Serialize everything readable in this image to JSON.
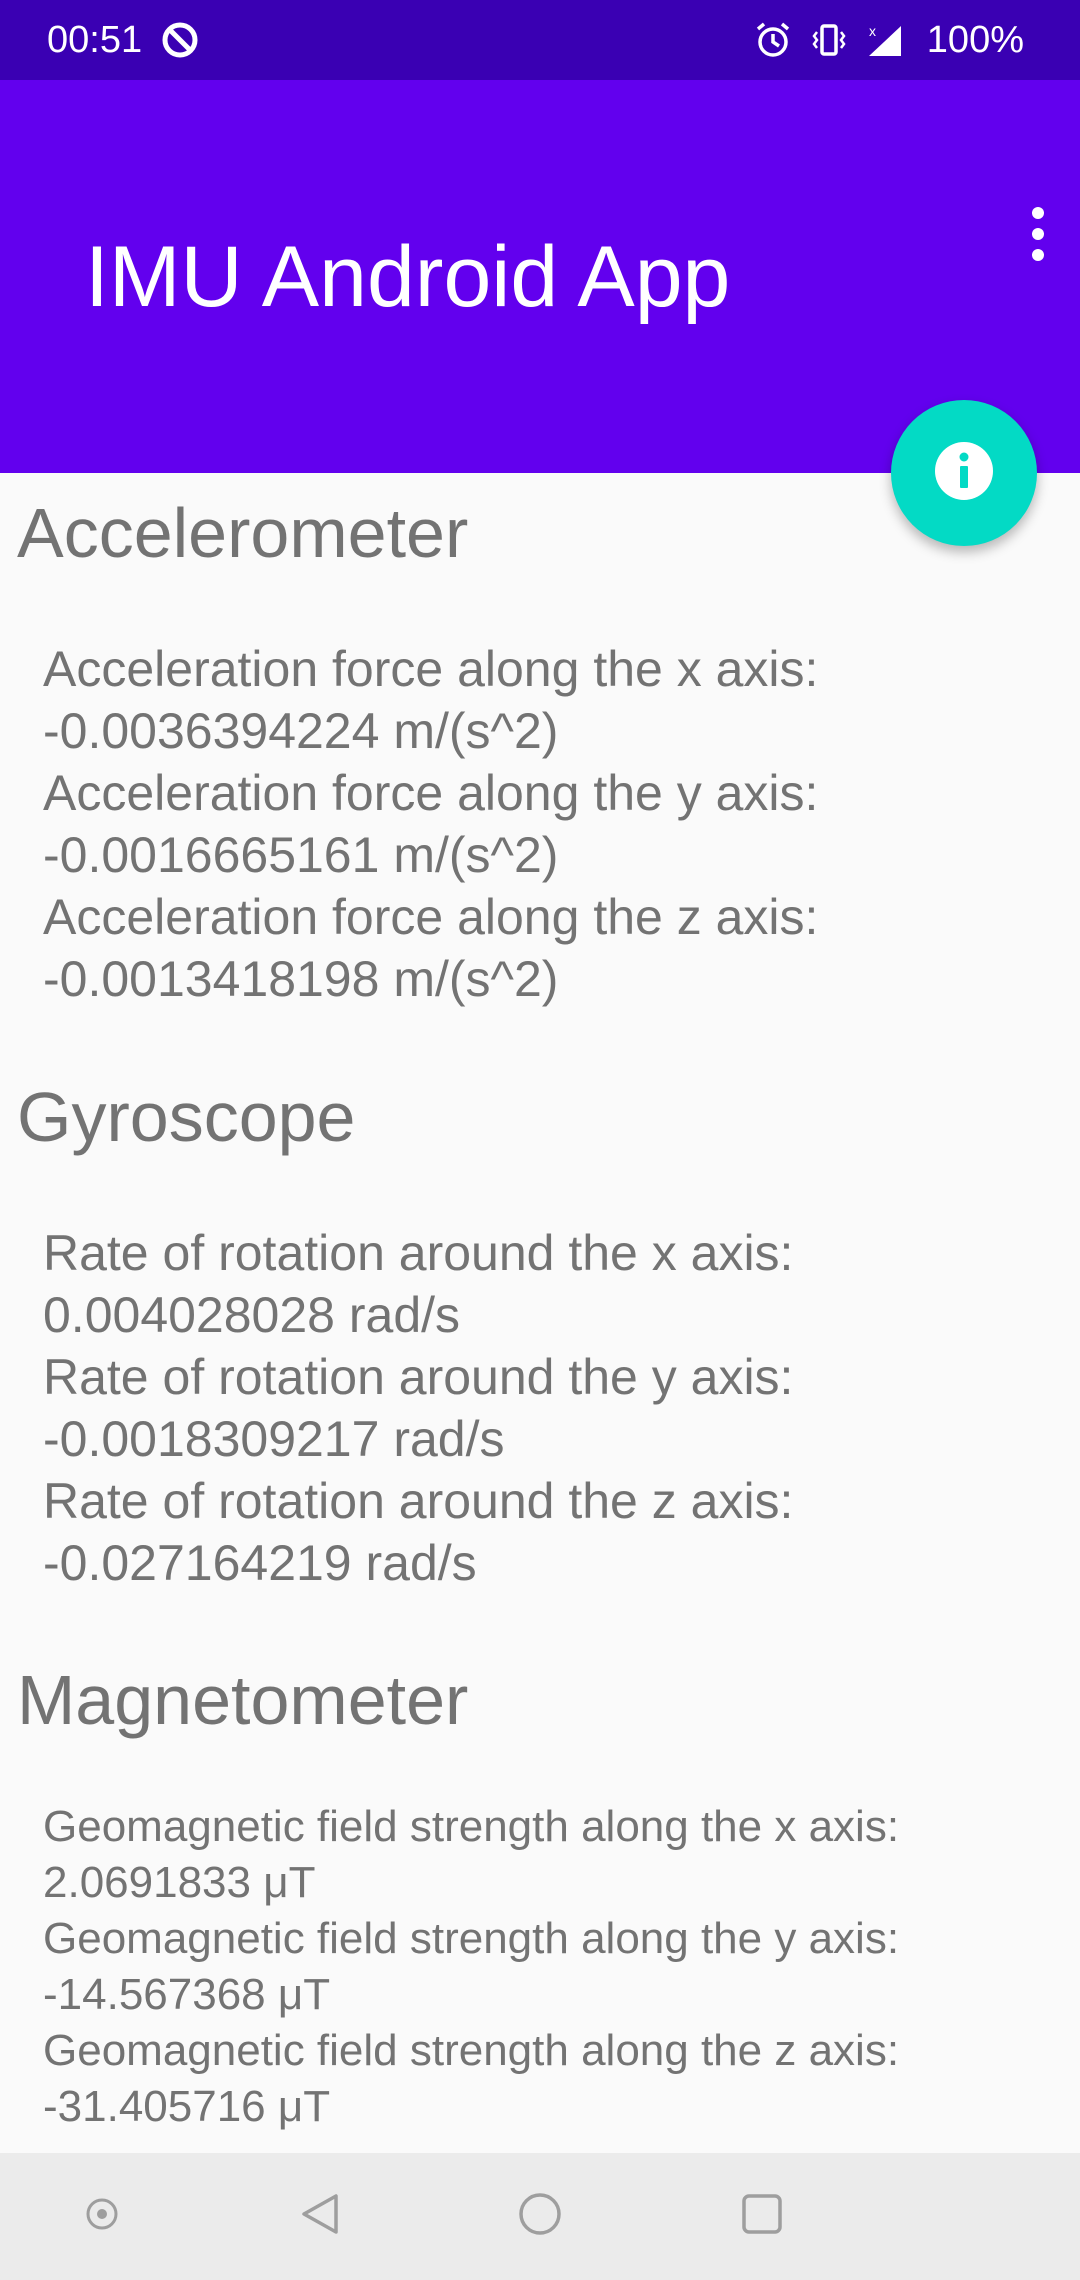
{
  "status_bar": {
    "time": "00:51",
    "battery": "100%",
    "icons": [
      "do-not-disturb-icon",
      "alarm-icon",
      "vibrate-icon",
      "signal-icon"
    ]
  },
  "app_bar": {
    "title": "IMU Android App",
    "menu_icon": "more-vert-icon"
  },
  "fab": {
    "icon": "info-icon",
    "color": "#03dac5"
  },
  "colors": {
    "primary": "#6200ee",
    "primary_dark": "#3a00b3",
    "text": "#737373",
    "background": "#fafafa"
  },
  "sections": {
    "accelerometer": {
      "title": "Accelerometer",
      "readings": [
        {
          "label": "Acceleration force along the x axis:",
          "value": "-0.0036394224 m/(s^2)"
        },
        {
          "label": "Acceleration force along the y axis:",
          "value": "-0.0016665161 m/(s^2)"
        },
        {
          "label": "Acceleration force along the z axis:",
          "value": "-0.0013418198 m/(s^2)"
        }
      ]
    },
    "gyroscope": {
      "title": "Gyroscope",
      "readings": [
        {
          "label": "Rate of rotation around the x axis:",
          "value": "0.004028028 rad/s"
        },
        {
          "label": "Rate of rotation around the y axis:",
          "value": "-0.0018309217 rad/s"
        },
        {
          "label": "Rate of rotation around the z axis:",
          "value": "-0.027164219 rad/s"
        }
      ]
    },
    "magnetometer": {
      "title": "Magnetometer",
      "readings": [
        {
          "label": "Geomagnetic field strength along the x axis:",
          "value": "2.0691833 μT"
        },
        {
          "label": "Geomagnetic field strength along the y axis:",
          "value": "-14.567368 μT"
        },
        {
          "label": "Geomagnetic field strength along the z axis:",
          "value": "-31.405716 μT"
        }
      ]
    }
  },
  "nav_bar": {
    "buttons": [
      "assistant-icon",
      "back-icon",
      "home-icon",
      "recents-icon"
    ]
  }
}
